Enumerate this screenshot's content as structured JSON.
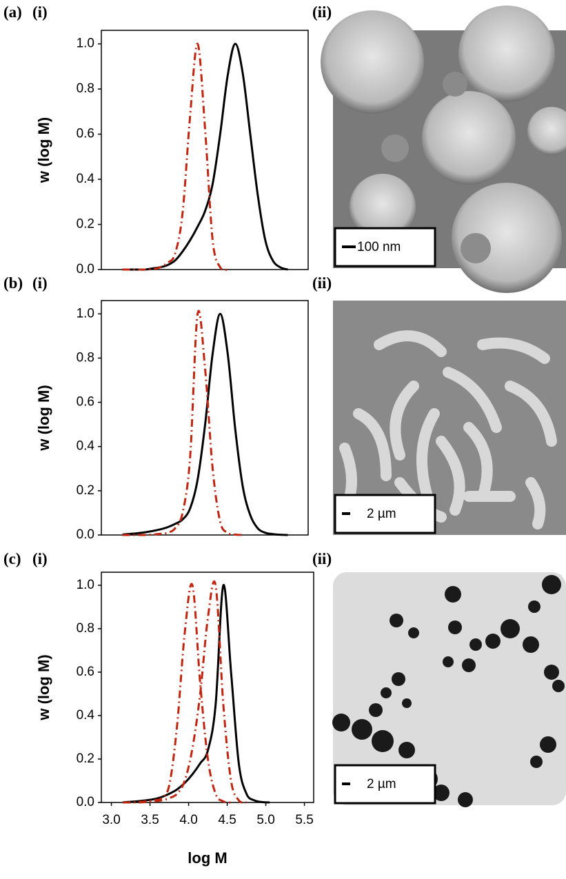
{
  "chart_data": [
    {
      "type": "line",
      "label": "(a)",
      "plot_label": "(i)",
      "image_label": "(ii)",
      "scale_bar": "100 nm",
      "ylabel": "w (log M)",
      "x": [
        3.15,
        3.25,
        3.35,
        3.45,
        3.55,
        3.65,
        3.75,
        3.85,
        3.95,
        4.05,
        4.15,
        4.25,
        4.35,
        4.45,
        4.55,
        4.65,
        4.75,
        4.85,
        4.95,
        5.05,
        5.15,
        5.25,
        5.35
      ],
      "xlim": [
        2.87,
        5.62
      ],
      "ylim": [
        0,
        1.06
      ],
      "yticks": [
        {
          "value": 0,
          "label": "0.0"
        },
        {
          "value": 0.2,
          "label": "0.2"
        },
        {
          "value": 0.4,
          "label": "0.4"
        },
        {
          "value": 0.6,
          "label": "0.6"
        },
        {
          "value": 0.8,
          "label": "0.8"
        },
        {
          "value": 1,
          "label": "1.0"
        }
      ],
      "series": [
        {
          "color": "#000000",
          "style": "solid",
          "values": [
            0,
            0,
            0,
            0,
            0.005,
            0.01,
            0.02,
            0.04,
            0.08,
            0.13,
            0.19,
            0.26,
            0.38,
            0.6,
            0.86,
            1.0,
            0.87,
            0.6,
            0.33,
            0.13,
            0.04,
            0.01,
            0
          ]
        },
        {
          "color": "#c0250f",
          "style": "dashdot",
          "values": [
            0,
            0,
            0,
            0,
            0.002,
            0.01,
            0.03,
            0.07,
            0.25,
            0.68,
            1.0,
            0.62,
            0.13,
            0.01,
            0,
            null,
            null,
            null,
            null,
            null,
            null,
            null,
            null
          ]
        }
      ]
    },
    {
      "type": "line",
      "label": "(b)",
      "plot_label": "(i)",
      "image_label": "(ii)",
      "scale_bar": "2 µm",
      "ylabel": "w (log M)",
      "x": [
        3.15,
        3.25,
        3.35,
        3.45,
        3.55,
        3.65,
        3.75,
        3.85,
        3.95,
        4.05,
        4.15,
        4.25,
        4.35,
        4.45,
        4.55,
        4.65,
        4.75,
        4.85,
        4.95,
        5.05,
        5.15,
        5.25,
        5.35
      ],
      "xlim": [
        2.87,
        5.62
      ],
      "ylim": [
        0,
        1.06
      ],
      "yticks": [
        {
          "value": 0,
          "label": "0.0"
        },
        {
          "value": 0.2,
          "label": "0.2"
        },
        {
          "value": 0.4,
          "label": "0.4"
        },
        {
          "value": 0.6,
          "label": "0.6"
        },
        {
          "value": 0.8,
          "label": "0.8"
        },
        {
          "value": 1,
          "label": "1.0"
        }
      ],
      "series": [
        {
          "color": "#000000",
          "style": "solid",
          "values": [
            0.002,
            0.005,
            0.008,
            0.012,
            0.018,
            0.025,
            0.035,
            0.05,
            0.07,
            0.12,
            0.25,
            0.5,
            0.82,
            1.0,
            0.82,
            0.48,
            0.22,
            0.09,
            0.03,
            0.01,
            0.004,
            0.001,
            0
          ]
        },
        {
          "color": "#c0250f",
          "style": "dashdot",
          "values": [
            0,
            0,
            0,
            0,
            0.002,
            0.005,
            0.01,
            0.03,
            0.1,
            0.35,
            1.0,
            0.75,
            0.3,
            0.06,
            0.01,
            0.002,
            0,
            null,
            null,
            null,
            null,
            null,
            null
          ]
        }
      ]
    },
    {
      "type": "line",
      "label": "(c)",
      "plot_label": "(i)",
      "image_label": "(ii)",
      "scale_bar": "2 µm",
      "ylabel": "w (log M)",
      "xlabel": "log M",
      "x": [
        3.15,
        3.25,
        3.35,
        3.45,
        3.55,
        3.65,
        3.75,
        3.85,
        3.95,
        4.05,
        4.15,
        4.25,
        4.35,
        4.45,
        4.55,
        4.65,
        4.75,
        4.85,
        4.95,
        5.05,
        5.15,
        5.25,
        5.35
      ],
      "xlim": [
        2.87,
        5.62
      ],
      "ylim": [
        0,
        1.06
      ],
      "xticks": [
        {
          "value": 3,
          "label": "3.0"
        },
        {
          "value": 3.5,
          "label": "3.5"
        },
        {
          "value": 4,
          "label": "4.0"
        },
        {
          "value": 4.5,
          "label": "4.5"
        },
        {
          "value": 5,
          "label": "5.0"
        },
        {
          "value": 5.5,
          "label": "5.5"
        }
      ],
      "yticks": [
        {
          "value": 0,
          "label": "0.0"
        },
        {
          "value": 0.2,
          "label": "0.2"
        },
        {
          "value": 0.4,
          "label": "0.4"
        },
        {
          "value": 0.6,
          "label": "0.6"
        },
        {
          "value": 0.8,
          "label": "0.8"
        },
        {
          "value": 1,
          "label": "1.0"
        }
      ],
      "series": [
        {
          "color": "#000000",
          "style": "solid",
          "values": [
            0.001,
            0.003,
            0.006,
            0.01,
            0.015,
            0.025,
            0.04,
            0.06,
            0.09,
            0.13,
            0.18,
            0.24,
            0.45,
            1.0,
            0.6,
            0.18,
            0.04,
            0.01,
            0.002,
            0,
            null,
            null,
            null
          ]
        },
        {
          "color": "#c0250f",
          "style": "dashdot",
          "values": [
            0,
            0,
            0.002,
            0.005,
            0.01,
            0.02,
            0.08,
            0.35,
            0.78,
            1.0,
            0.55,
            0.2,
            0.04,
            0.005,
            0,
            null,
            null,
            null,
            null,
            null,
            null,
            null,
            null
          ]
        },
        {
          "color": "#c0250f",
          "style": "dashdot",
          "values": [
            0,
            0,
            0,
            0.002,
            0.005,
            0.01,
            0.02,
            0.04,
            0.1,
            0.25,
            0.5,
            0.85,
            1.0,
            0.45,
            0.1,
            0.01,
            0,
            null,
            null,
            null,
            null,
            null,
            null
          ]
        }
      ]
    }
  ]
}
